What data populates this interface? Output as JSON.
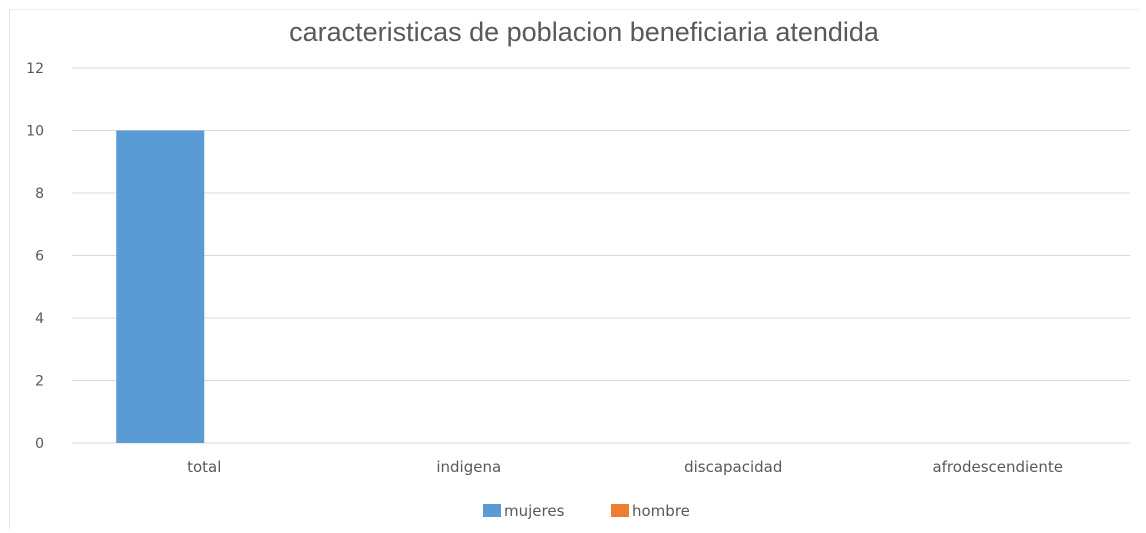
{
  "chart_data": {
    "type": "bar",
    "title": "caracteristicas de poblacion beneficiaria atendida",
    "xlabel": "",
    "ylabel": "",
    "categories": [
      "total",
      "indigena",
      "discapacidad",
      "afrodescendiente"
    ],
    "series": [
      {
        "name": "mujeres",
        "values": [
          10,
          0,
          0,
          0
        ],
        "color": "#5B9BD5"
      },
      {
        "name": "hombre",
        "values": [
          0,
          0,
          0,
          0
        ],
        "color": "#ED7D31"
      }
    ],
    "ylim": [
      0,
      12
    ],
    "yticks": [
      "0",
      "2",
      "4",
      "6",
      "8",
      "10",
      "12"
    ],
    "grid": true,
    "legend_position": "bottom"
  }
}
